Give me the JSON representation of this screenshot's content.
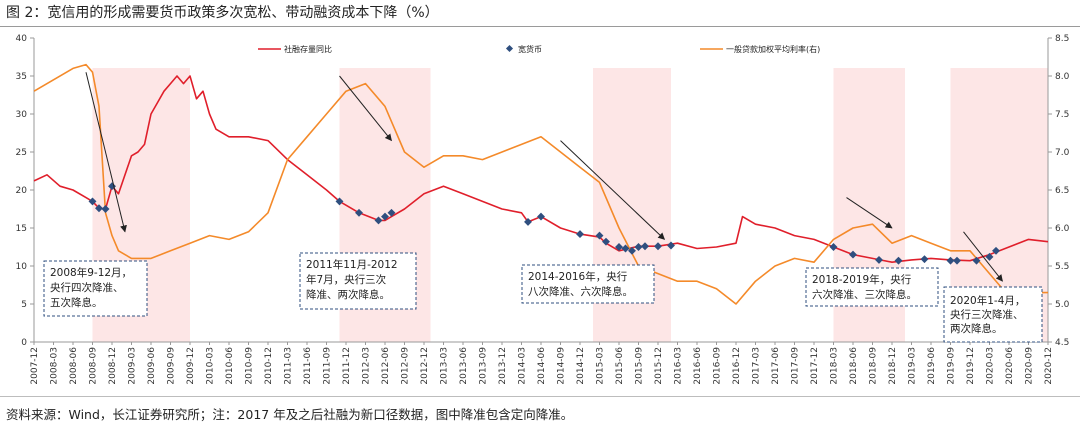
{
  "title": "图 2：宽信用的形成需要货币政策多次宽松、带动融资成本下降（%）",
  "source_note": "资料来源：Wind，长江证券研究所；注：2017 年及之后社融为新口径数据，图中降准包含定向降准。",
  "chart_data": {
    "type": "line",
    "x_tick_labels": [
      "2007-12",
      "2008-03",
      "2008-06",
      "2008-09",
      "2008-12",
      "2009-03",
      "2009-06",
      "2009-09",
      "2009-12",
      "2010-03",
      "2010-06",
      "2010-09",
      "2010-12",
      "2011-03",
      "2011-06",
      "2011-09",
      "2011-12",
      "2012-03",
      "2012-06",
      "2012-09",
      "2012-12",
      "2013-03",
      "2013-06",
      "2013-09",
      "2013-12",
      "2014-03",
      "2014-06",
      "2014-09",
      "2014-12",
      "2015-03",
      "2015-06",
      "2015-09",
      "2015-12",
      "2016-03",
      "2016-06",
      "2016-09",
      "2016-12",
      "2017-03",
      "2017-06",
      "2017-09",
      "2017-12",
      "2018-03",
      "2018-06",
      "2018-09",
      "2018-12",
      "2019-03",
      "2019-06",
      "2019-09",
      "2019-12",
      "2020-03",
      "2020-06",
      "2020-09",
      "2020-12"
    ],
    "y_left": {
      "min": 0,
      "max": 40,
      "step": 5,
      "ticks": [
        "0",
        "5",
        "10",
        "15",
        "20",
        "25",
        "30",
        "35",
        "40"
      ]
    },
    "y_right": {
      "min": 4.5,
      "max": 8.5,
      "step": 0.5,
      "ticks": [
        "4.5",
        "5.0",
        "5.5",
        "6.0",
        "6.5",
        "7.0",
        "7.5",
        "8.0",
        "8.5"
      ]
    },
    "shaded_periods": [
      [
        "2008-09",
        "2009-12"
      ],
      [
        "2011-11",
        "2013-01"
      ],
      [
        "2015-02",
        "2016-02"
      ],
      [
        "2018-03",
        "2019-02"
      ],
      [
        "2019-09",
        "2020-12"
      ]
    ],
    "series": [
      {
        "name": "社融存量同比",
        "axis": "left",
        "color": "#e01f2b",
        "points": [
          [
            "2007-12",
            21.2
          ],
          [
            "2008-02",
            22.0
          ],
          [
            "2008-04",
            20.5
          ],
          [
            "2008-06",
            20.0
          ],
          [
            "2008-08",
            19.0
          ],
          [
            "2008-09",
            18.5
          ],
          [
            "2008-10",
            17.6
          ],
          [
            "2008-11",
            17.5
          ],
          [
            "2008-12",
            20.5
          ],
          [
            "2009-01",
            19.5
          ],
          [
            "2009-02",
            22.0
          ],
          [
            "2009-03",
            24.5
          ],
          [
            "2009-04",
            25.0
          ],
          [
            "2009-05",
            26.0
          ],
          [
            "2009-06",
            30.0
          ],
          [
            "2009-07",
            31.5
          ],
          [
            "2009-08",
            33.0
          ],
          [
            "2009-09",
            34.0
          ],
          [
            "2009-10",
            35.0
          ],
          [
            "2009-11",
            34.0
          ],
          [
            "2009-12",
            35.0
          ],
          [
            "2010-01",
            32.0
          ],
          [
            "2010-02",
            33.0
          ],
          [
            "2010-03",
            30.0
          ],
          [
            "2010-04",
            28.0
          ],
          [
            "2010-06",
            27.0
          ],
          [
            "2010-09",
            27.0
          ],
          [
            "2010-12",
            26.5
          ],
          [
            "2011-03",
            24.0
          ],
          [
            "2011-06",
            22.0
          ],
          [
            "2011-09",
            20.0
          ],
          [
            "2011-11",
            18.5
          ],
          [
            "2011-12",
            18.0
          ],
          [
            "2012-02",
            17.0
          ],
          [
            "2012-05",
            16.0
          ],
          [
            "2012-06",
            16.0
          ],
          [
            "2012-07",
            16.5
          ],
          [
            "2012-09",
            17.5
          ],
          [
            "2012-12",
            19.5
          ],
          [
            "2013-03",
            20.5
          ],
          [
            "2013-06",
            19.5
          ],
          [
            "2013-09",
            18.5
          ],
          [
            "2013-12",
            17.5
          ],
          [
            "2014-03",
            17.0
          ],
          [
            "2014-04",
            15.8
          ],
          [
            "2014-06",
            16.5
          ],
          [
            "2014-09",
            15.0
          ],
          [
            "2014-12",
            14.2
          ],
          [
            "2015-03",
            13.8
          ],
          [
            "2015-04",
            13.0
          ],
          [
            "2015-06",
            12.0
          ],
          [
            "2015-09",
            12.6
          ],
          [
            "2015-12",
            12.6
          ],
          [
            "2016-03",
            13.0
          ],
          [
            "2016-06",
            12.3
          ],
          [
            "2016-09",
            12.5
          ],
          [
            "2016-12",
            13.0
          ],
          [
            "2017-01",
            16.5
          ],
          [
            "2017-03",
            15.5
          ],
          [
            "2017-06",
            15.0
          ],
          [
            "2017-09",
            14.0
          ],
          [
            "2017-12",
            13.5
          ],
          [
            "2018-03",
            12.5
          ],
          [
            "2018-06",
            11.5
          ],
          [
            "2018-09",
            11.0
          ],
          [
            "2018-12",
            10.5
          ],
          [
            "2019-03",
            10.8
          ],
          [
            "2019-06",
            11.0
          ],
          [
            "2019-09",
            10.8
          ],
          [
            "2019-12",
            10.7
          ],
          [
            "2020-03",
            11.5
          ],
          [
            "2020-06",
            12.5
          ],
          [
            "2020-09",
            13.5
          ],
          [
            "2020-12",
            13.2
          ]
        ]
      },
      {
        "name": "宽货币",
        "axis": "left",
        "color": "#2f4f7f",
        "marker": "diamond",
        "points": [
          [
            "2008-09",
            18.5
          ],
          [
            "2008-10",
            17.6
          ],
          [
            "2008-11",
            17.5
          ],
          [
            "2008-12",
            20.5
          ],
          [
            "2011-11",
            18.5
          ],
          [
            "2012-02",
            17.0
          ],
          [
            "2012-05",
            16.0
          ],
          [
            "2012-06",
            16.5
          ],
          [
            "2012-07",
            17.0
          ],
          [
            "2014-04",
            15.8
          ],
          [
            "2014-06",
            16.5
          ],
          [
            "2014-12",
            14.2
          ],
          [
            "2015-03",
            14.0
          ],
          [
            "2015-04",
            13.2
          ],
          [
            "2015-06",
            12.5
          ],
          [
            "2015-07",
            12.3
          ],
          [
            "2015-08",
            12.0
          ],
          [
            "2015-09",
            12.5
          ],
          [
            "2015-10",
            12.6
          ],
          [
            "2015-12",
            12.6
          ],
          [
            "2016-02",
            12.7
          ],
          [
            "2018-03",
            12.5
          ],
          [
            "2018-06",
            11.5
          ],
          [
            "2018-10",
            10.8
          ],
          [
            "2019-01",
            10.7
          ],
          [
            "2019-05",
            10.9
          ],
          [
            "2019-09",
            10.7
          ],
          [
            "2019-10",
            10.7
          ],
          [
            "2020-01",
            10.7
          ],
          [
            "2020-03",
            11.2
          ],
          [
            "2020-04",
            12.0
          ]
        ]
      },
      {
        "name": "一般贷款加权平均利率(右)",
        "axis": "right",
        "color": "#f48a2a",
        "points": [
          [
            "2007-12",
            7.8
          ],
          [
            "2008-03",
            7.95
          ],
          [
            "2008-06",
            8.1
          ],
          [
            "2008-08",
            8.15
          ],
          [
            "2008-09",
            8.05
          ],
          [
            "2008-10",
            7.6
          ],
          [
            "2008-11",
            6.2
          ],
          [
            "2008-12",
            5.9
          ],
          [
            "2009-01",
            5.7
          ],
          [
            "2009-03",
            5.6
          ],
          [
            "2009-06",
            5.6
          ],
          [
            "2009-09",
            5.7
          ],
          [
            "2009-12",
            5.8
          ],
          [
            "2010-03",
            5.9
          ],
          [
            "2010-06",
            5.85
          ],
          [
            "2010-09",
            5.95
          ],
          [
            "2010-12",
            6.2
          ],
          [
            "2011-03",
            6.9
          ],
          [
            "2011-06",
            7.2
          ],
          [
            "2011-09",
            7.5
          ],
          [
            "2011-12",
            7.8
          ],
          [
            "2012-03",
            7.9
          ],
          [
            "2012-06",
            7.6
          ],
          [
            "2012-09",
            7.0
          ],
          [
            "2012-12",
            6.8
          ],
          [
            "2013-03",
            6.95
          ],
          [
            "2013-06",
            6.95
          ],
          [
            "2013-09",
            6.9
          ],
          [
            "2013-12",
            7.0
          ],
          [
            "2014-03",
            7.1
          ],
          [
            "2014-06",
            7.2
          ],
          [
            "2014-09",
            7.0
          ],
          [
            "2014-12",
            6.8
          ],
          [
            "2015-03",
            6.6
          ],
          [
            "2015-06",
            6.0
          ],
          [
            "2015-09",
            5.5
          ],
          [
            "2015-12",
            5.4
          ],
          [
            "2016-03",
            5.3
          ],
          [
            "2016-06",
            5.3
          ],
          [
            "2016-09",
            5.2
          ],
          [
            "2016-12",
            5.0
          ],
          [
            "2017-03",
            5.3
          ],
          [
            "2017-06",
            5.5
          ],
          [
            "2017-09",
            5.6
          ],
          [
            "2017-12",
            5.55
          ],
          [
            "2018-03",
            5.85
          ],
          [
            "2018-06",
            6.0
          ],
          [
            "2018-09",
            6.05
          ],
          [
            "2018-12",
            5.8
          ],
          [
            "2019-03",
            5.9
          ],
          [
            "2019-06",
            5.8
          ],
          [
            "2019-09",
            5.7
          ],
          [
            "2019-12",
            5.7
          ],
          [
            "2020-03",
            5.4
          ],
          [
            "2020-06",
            5.1
          ],
          [
            "2020-09",
            5.15
          ],
          [
            "2020-12",
            5.15
          ]
        ]
      }
    ],
    "annotations": [
      {
        "lines": [
          "2008年9-12月，",
          "央行四次降准、",
          "五次降息。"
        ]
      },
      {
        "lines": [
          "2011年11月-2012",
          "年7月，央行三次",
          "降准、两次降息。"
        ]
      },
      {
        "lines": [
          "2014-2016年，央行",
          "八次降准、六次降息。"
        ]
      },
      {
        "lines": [
          "2018-2019年，央行",
          "六次降准、三次降息。"
        ]
      },
      {
        "lines": [
          "2020年1-4月，",
          "央行三次降准、",
          "两次降息。"
        ]
      }
    ]
  }
}
